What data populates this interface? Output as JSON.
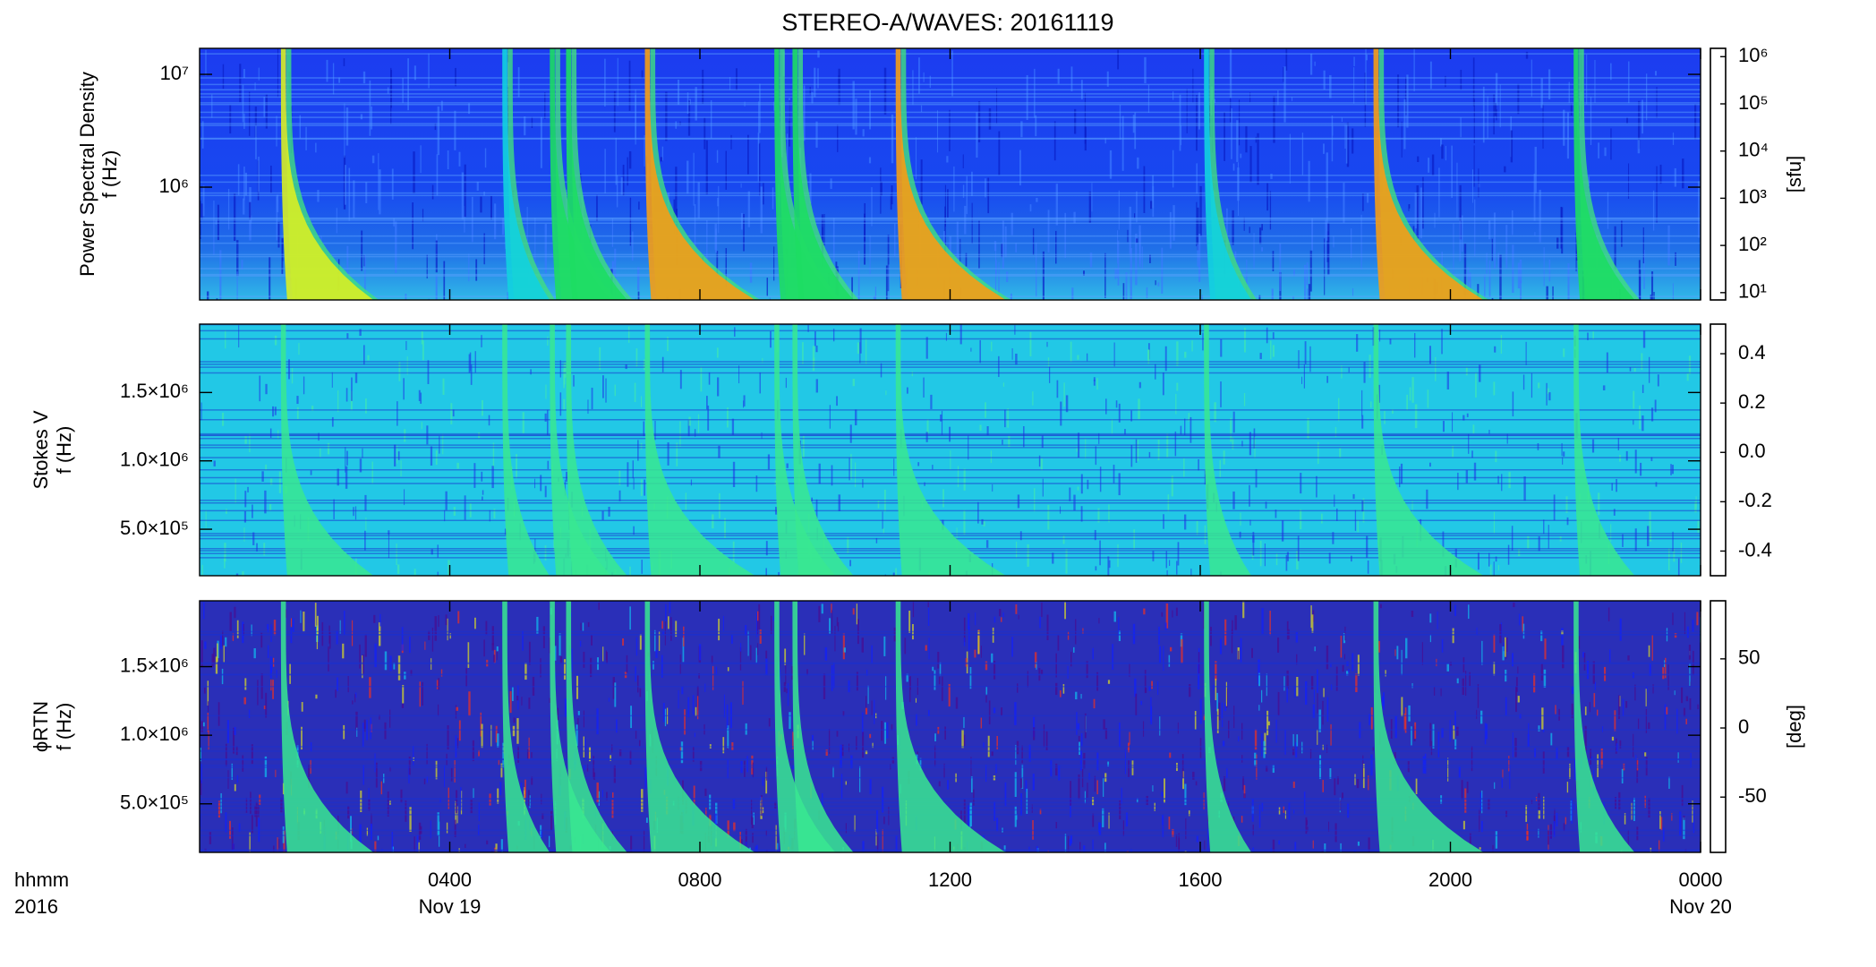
{
  "chart_data": [
    {
      "type": "heatmap",
      "title": "STEREO-A/WAVES: 20161119",
      "ylabel": "Power Spectral Density",
      "ylabel2": "f (Hz)",
      "ylog": true,
      "ylim": [
        100000,
        17000000
      ],
      "yticks": [
        {
          "value": 1000000,
          "label": "10⁶"
        },
        {
          "value": 10000000,
          "label": "10⁷"
        }
      ],
      "xlim": [
        0,
        24
      ],
      "bursts": {
        "x": [
          1.3,
          4.84,
          5.6,
          5.86,
          7.12,
          9.19,
          9.48,
          11.13,
          16.06,
          18.77,
          21.97
        ],
        "values": [
          100000,
          3000,
          10000,
          10000,
          300000,
          10000,
          10000,
          300000,
          3000,
          300000,
          10000
        ]
      },
      "colorbar": {
        "label": "[sfu]",
        "log": true,
        "lim": [
          7,
          1500000
        ],
        "ticks": [
          {
            "value": 10,
            "label": "10¹"
          },
          {
            "value": 100,
            "label": "10²"
          },
          {
            "value": 1000,
            "label": "10³"
          },
          {
            "value": 10000,
            "label": "10⁴"
          },
          {
            "value": 100000,
            "label": "10⁵"
          },
          {
            "value": 1000000,
            "label": "10⁶"
          }
        ]
      }
    },
    {
      "type": "heatmap",
      "ylabel": "Stokes V",
      "ylabel2": "f (Hz)",
      "ylim": [
        160000,
        2000000
      ],
      "yticks": [
        {
          "value": 500000,
          "label": "5.0×10⁵"
        },
        {
          "value": 1000000,
          "label": "1.0×10⁶"
        },
        {
          "value": 1500000,
          "label": "1.5×10⁶"
        }
      ],
      "xlim": [
        0,
        24
      ],
      "colorbar": {
        "lim": [
          -0.5,
          0.52
        ],
        "ticks": [
          {
            "value": 0.4,
            "label": "0.4"
          },
          {
            "value": 0.2,
            "label": "0.2"
          },
          {
            "value": 0,
            "label": "0.0"
          },
          {
            "value": -0.2,
            "label": "-0.2"
          },
          {
            "value": -0.4,
            "label": "-0.4"
          }
        ]
      }
    },
    {
      "type": "heatmap",
      "ylabel": "ϕRTN",
      "ylabel2": "f (Hz)",
      "ylim": [
        146000,
        1980000
      ],
      "yticks": [
        {
          "value": 500000,
          "label": "5.0×10⁵"
        },
        {
          "value": 1000000,
          "label": "1.0×10⁶"
        },
        {
          "value": 1500000,
          "label": "1.5×10⁶"
        }
      ],
      "xlim": [
        0,
        24
      ],
      "xlabel": "hhmm",
      "xlabel2": "2016",
      "xticks": [
        {
          "value": 4,
          "label": "0400"
        },
        {
          "value": 8,
          "label": "0800"
        },
        {
          "value": 12,
          "label": "1200"
        },
        {
          "value": 16,
          "label": "1600"
        },
        {
          "value": 20,
          "label": "2000"
        },
        {
          "value": 24,
          "label": "0000"
        }
      ],
      "xdate_labels": [
        {
          "value": 4,
          "label": "Nov 19"
        },
        {
          "value": 24,
          "label": "Nov 20"
        }
      ],
      "colorbar": {
        "label": "[deg]",
        "lim": [
          -90,
          92
        ],
        "ticks": [
          {
            "value": 50,
            "label": "50"
          },
          0,
          {
            "value": -50,
            "label": "-50"
          }
        ]
      }
    }
  ]
}
